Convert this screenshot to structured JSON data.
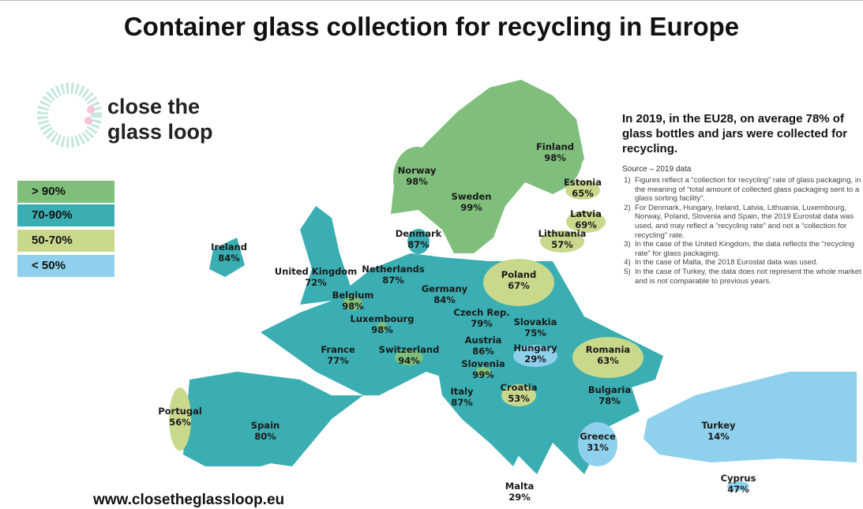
{
  "header": {
    "title": "Container glass collection for recycling in Europe"
  },
  "logo": {
    "line1": "close the",
    "line2": "glass loop"
  },
  "legend": [
    {
      "label": "> 90%",
      "color": "#7fbf7b"
    },
    {
      "label": "70-90%",
      "color": "#3aaeb2"
    },
    {
      "label": "50-70%",
      "color": "#c8d98c"
    },
    {
      "label": "< 50%",
      "color": "#8fd1ec"
    }
  ],
  "summary": "In 2019, in the EU28, on average 78% of glass bottles and jars were collected for recycling.",
  "source": "Source – 2019 data",
  "notes": [
    "Figures reflect a “collection for recycling” rate of glass packaging, in the meaning of “total amount of collected glass packaging sent to a glass sorting facility”.",
    "For Denmark, Hungary, Ireland, Latvia, Lithuania, Luxembourg, Norway, Poland, Slovenia and Spain, the 2019 Eurostat data was used, and may reflect a “recycling rate” and not a “collection for recycling” rate.",
    "In the case of the United Kingdom, the data reflects the “recycling rate” for glass packaging.",
    "In the case of Malta, the 2018 Eurostat data was used.",
    "In the case of Turkey, the data does not represent the whole market and is not comparable to previous years."
  ],
  "countries": [
    {
      "name": "Finland",
      "value": "98%",
      "class": 0
    },
    {
      "name": "Norway",
      "value": "98%",
      "class": 0
    },
    {
      "name": "Sweden",
      "value": "99%",
      "class": 0
    },
    {
      "name": "Estonia",
      "value": "65%",
      "class": 2
    },
    {
      "name": "Latvia",
      "value": "69%",
      "class": 2
    },
    {
      "name": "Lithuania",
      "value": "57%",
      "class": 2
    },
    {
      "name": "Denmark",
      "value": "87%",
      "class": 1
    },
    {
      "name": "Ireland",
      "value": "84%",
      "class": 1
    },
    {
      "name": "United Kingdom",
      "value": "72%",
      "class": 1
    },
    {
      "name": "Netherlands",
      "value": "87%",
      "class": 1
    },
    {
      "name": "Belgium",
      "value": "98%",
      "class": 0
    },
    {
      "name": "Germany",
      "value": "84%",
      "class": 1
    },
    {
      "name": "Poland",
      "value": "67%",
      "class": 2
    },
    {
      "name": "Luxembourg",
      "value": "98%",
      "class": 0
    },
    {
      "name": "Czech Rep.",
      "value": "79%",
      "class": 1
    },
    {
      "name": "Slovakia",
      "value": "75%",
      "class": 1
    },
    {
      "name": "Austria",
      "value": "86%",
      "class": 1
    },
    {
      "name": "Hungary",
      "value": "29%",
      "class": 3
    },
    {
      "name": "France",
      "value": "77%",
      "class": 1
    },
    {
      "name": "Switzerland",
      "value": "94%",
      "class": 0
    },
    {
      "name": "Romania",
      "value": "63%",
      "class": 2
    },
    {
      "name": "Slovenia",
      "value": "99%",
      "class": 0
    },
    {
      "name": "Croatia",
      "value": "53%",
      "class": 2
    },
    {
      "name": "Bulgaria",
      "value": "78%",
      "class": 1
    },
    {
      "name": "Portugal",
      "value": "56%",
      "class": 2
    },
    {
      "name": "Spain",
      "value": "80%",
      "class": 1
    },
    {
      "name": "Italy",
      "value": "87%",
      "class": 1
    },
    {
      "name": "Greece",
      "value": "31%",
      "class": 3
    },
    {
      "name": "Turkey",
      "value": "14%",
      "class": 3
    },
    {
      "name": "Malta",
      "value": "29%",
      "class": 3
    },
    {
      "name": "Cyprus",
      "value": "47%",
      "class": 3
    }
  ],
  "footer": {
    "url": "www.closetheglassloop.eu"
  }
}
